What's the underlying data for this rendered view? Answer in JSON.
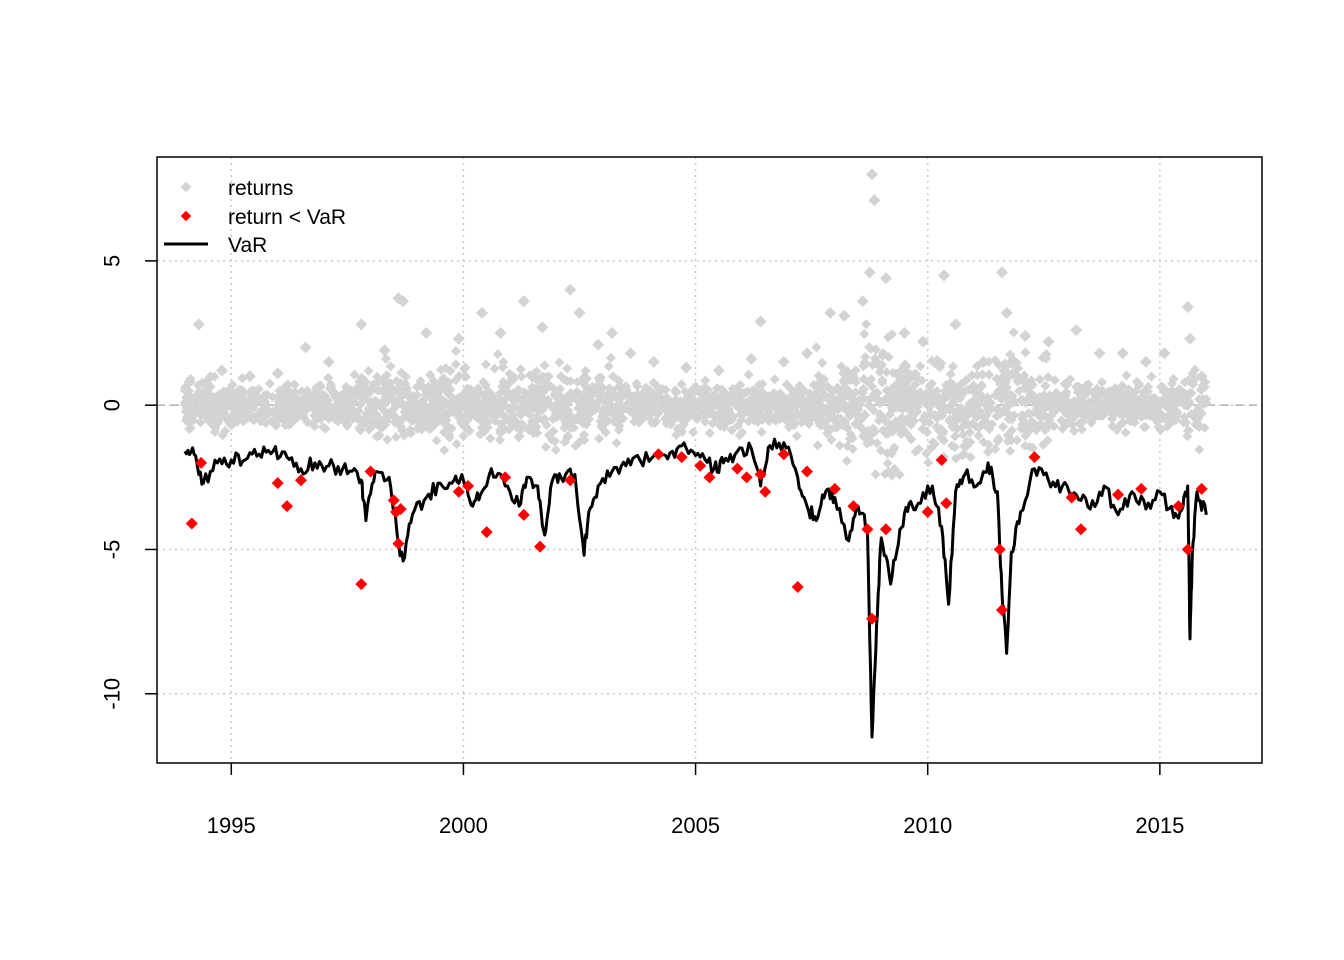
{
  "chart_data": {
    "type": "scatter",
    "title": "",
    "xlabel": "",
    "ylabel": "",
    "xlim": [
      1993.4,
      2017.2
    ],
    "ylim": [
      -12.4,
      8.6
    ],
    "x_ticks": [
      1995,
      2000,
      2005,
      2010,
      2015
    ],
    "x_tick_labels": [
      "1995",
      "2000",
      "2005",
      "2010",
      "2015"
    ],
    "y_ticks": [
      -10,
      -5,
      0,
      5
    ],
    "y_tick_labels": [
      "-10",
      "-5",
      "0",
      "5"
    ],
    "grid": true,
    "legend_position": "top-left",
    "colors": {
      "returns": "#d3d3d3",
      "exceedance": "#ff0000",
      "var": "#000000",
      "grid": "#c8c8c8"
    },
    "series": [
      {
        "name": "returns",
        "kind": "points",
        "x": [
          1994.1,
          1994.3,
          1994.8,
          1995.4,
          1996.0,
          1996.6,
          1997.1,
          1997.8,
          1998.3,
          1998.6,
          1998.7,
          1999.2,
          1999.9,
          2000.4,
          2000.8,
          2001.3,
          2001.7,
          2002.3,
          2002.5,
          2002.9,
          2003.2,
          2003.6,
          2004.1,
          2004.8,
          2005.5,
          2006.2,
          2006.4,
          2006.9,
          2007.4,
          2007.9,
          2008.2,
          2008.6,
          2008.75,
          2008.8,
          2008.85,
          2009.1,
          2009.5,
          2009.9,
          2010.35,
          2010.6,
          2011.2,
          2011.6,
          2011.7,
          2012.1,
          2012.6,
          2013.2,
          2013.7,
          2014.2,
          2014.7,
          2015.1,
          2015.6,
          2015.65,
          2015.9
        ],
        "y": [
          0.8,
          2.8,
          1.2,
          1.0,
          1.1,
          2.0,
          1.5,
          2.8,
          1.9,
          3.7,
          3.6,
          2.5,
          2.3,
          3.2,
          2.5,
          3.6,
          2.7,
          4.0,
          3.2,
          2.1,
          2.5,
          1.8,
          1.5,
          1.3,
          1.2,
          1.6,
          2.9,
          1.5,
          1.8,
          3.2,
          3.1,
          3.6,
          4.6,
          8.0,
          7.1,
          4.4,
          2.5,
          2.2,
          4.5,
          2.8,
          1.5,
          4.6,
          3.2,
          2.4,
          2.2,
          2.6,
          1.8,
          1.8,
          1.5,
          1.8,
          3.4,
          2.3,
          1.0
        ]
      },
      {
        "name": "return < VaR",
        "kind": "points",
        "x": [
          1994.15,
          1994.35,
          1996.0,
          1996.2,
          1996.5,
          1997.8,
          1998.0,
          1998.5,
          1998.55,
          1998.6,
          1998.65,
          1999.9,
          2000.1,
          2000.5,
          2000.9,
          2001.3,
          2001.65,
          2002.3,
          2004.2,
          2004.7,
          2005.1,
          2005.3,
          2005.9,
          2006.1,
          2006.4,
          2006.5,
          2006.9,
          2007.2,
          2007.4,
          2008.0,
          2008.4,
          2008.7,
          2008.8,
          2009.1,
          2010.0,
          2010.3,
          2010.4,
          2011.55,
          2011.6,
          2012.3,
          2013.1,
          2013.3,
          2014.1,
          2014.6,
          2015.4,
          2015.6,
          2015.9
        ],
        "y": [
          -4.1,
          -2.0,
          -2.7,
          -3.5,
          -2.6,
          -6.2,
          -2.3,
          -3.3,
          -3.7,
          -4.8,
          -3.6,
          -3.0,
          -2.8,
          -4.4,
          -2.5,
          -3.8,
          -4.9,
          -2.6,
          -1.7,
          -1.8,
          -2.1,
          -2.5,
          -2.2,
          -2.5,
          -2.4,
          -3.0,
          -1.7,
          -6.3,
          -2.3,
          -2.9,
          -3.5,
          -4.3,
          -7.4,
          -4.3,
          -3.7,
          -1.9,
          -3.4,
          -5.0,
          -7.1,
          -1.8,
          -3.2,
          -4.3,
          -3.1,
          -2.9,
          -3.5,
          -5.0,
          -2.9
        ]
      },
      {
        "name": "VaR",
        "kind": "line",
        "x": [
          1994.0,
          1994.2,
          1994.4,
          1994.7,
          1995.0,
          1995.3,
          1995.6,
          1995.9,
          1996.2,
          1996.5,
          1996.8,
          1997.1,
          1997.4,
          1997.7,
          1997.8,
          1997.9,
          1998.1,
          1998.4,
          1998.6,
          1998.7,
          1998.9,
          1999.2,
          1999.5,
          1999.8,
          2000.0,
          2000.2,
          2000.4,
          2000.6,
          2000.9,
          2001.2,
          2001.4,
          2001.6,
          2001.75,
          2001.9,
          2002.1,
          2002.4,
          2002.6,
          2002.7,
          2002.9,
          2003.2,
          2003.5,
          2003.8,
          2004.2,
          2004.5,
          2004.8,
          2005.1,
          2005.4,
          2005.6,
          2005.9,
          2006.2,
          2006.4,
          2006.6,
          2006.9,
          2007.2,
          2007.4,
          2007.6,
          2007.8,
          2008.0,
          2008.3,
          2008.5,
          2008.7,
          2008.8,
          2008.9,
          2009.0,
          2009.2,
          2009.4,
          2009.6,
          2009.8,
          2010.1,
          2010.3,
          2010.45,
          2010.6,
          2010.8,
          2011.1,
          2011.3,
          2011.5,
          2011.6,
          2011.7,
          2011.8,
          2012.0,
          2012.3,
          2012.6,
          2012.9,
          2013.2,
          2013.5,
          2013.8,
          2014.1,
          2014.4,
          2014.7,
          2015.0,
          2015.3,
          2015.5,
          2015.6,
          2015.65,
          2015.7,
          2015.8,
          2016.0
        ],
        "y": [
          -1.6,
          -1.7,
          -2.7,
          -2.0,
          -1.9,
          -1.9,
          -1.7,
          -1.6,
          -1.8,
          -2.2,
          -2.0,
          -2.1,
          -2.2,
          -2.3,
          -2.6,
          -4.0,
          -2.3,
          -2.5,
          -4.8,
          -5.4,
          -3.8,
          -3.2,
          -2.7,
          -2.6,
          -2.6,
          -3.5,
          -3.0,
          -2.2,
          -2.8,
          -3.5,
          -2.5,
          -2.8,
          -4.5,
          -2.7,
          -2.5,
          -2.4,
          -5.2,
          -3.7,
          -2.8,
          -2.3,
          -2.1,
          -1.9,
          -1.7,
          -1.6,
          -1.5,
          -1.8,
          -2.2,
          -2.0,
          -1.6,
          -1.5,
          -2.8,
          -1.4,
          -1.3,
          -2.5,
          -3.5,
          -4.0,
          -3.0,
          -3.2,
          -4.7,
          -3.5,
          -4.3,
          -11.5,
          -7.6,
          -4.6,
          -6.2,
          -4.3,
          -3.4,
          -3.4,
          -2.8,
          -4.2,
          -6.9,
          -3.0,
          -2.4,
          -2.7,
          -2.0,
          -3.0,
          -6.5,
          -8.6,
          -5.1,
          -3.7,
          -2.2,
          -2.6,
          -2.8,
          -3.1,
          -3.6,
          -2.8,
          -3.8,
          -3.0,
          -3.6,
          -3.0,
          -3.9,
          -3.5,
          -2.8,
          -8.1,
          -5.1,
          -3.0,
          -3.8
        ]
      }
    ],
    "legend": [
      {
        "label": "returns",
        "symbol": "point",
        "color": "#d3d3d3"
      },
      {
        "label": "return < VaR",
        "symbol": "point",
        "color": "#ff0000"
      },
      {
        "label": "VaR",
        "symbol": "line",
        "color": "#000000"
      }
    ]
  }
}
